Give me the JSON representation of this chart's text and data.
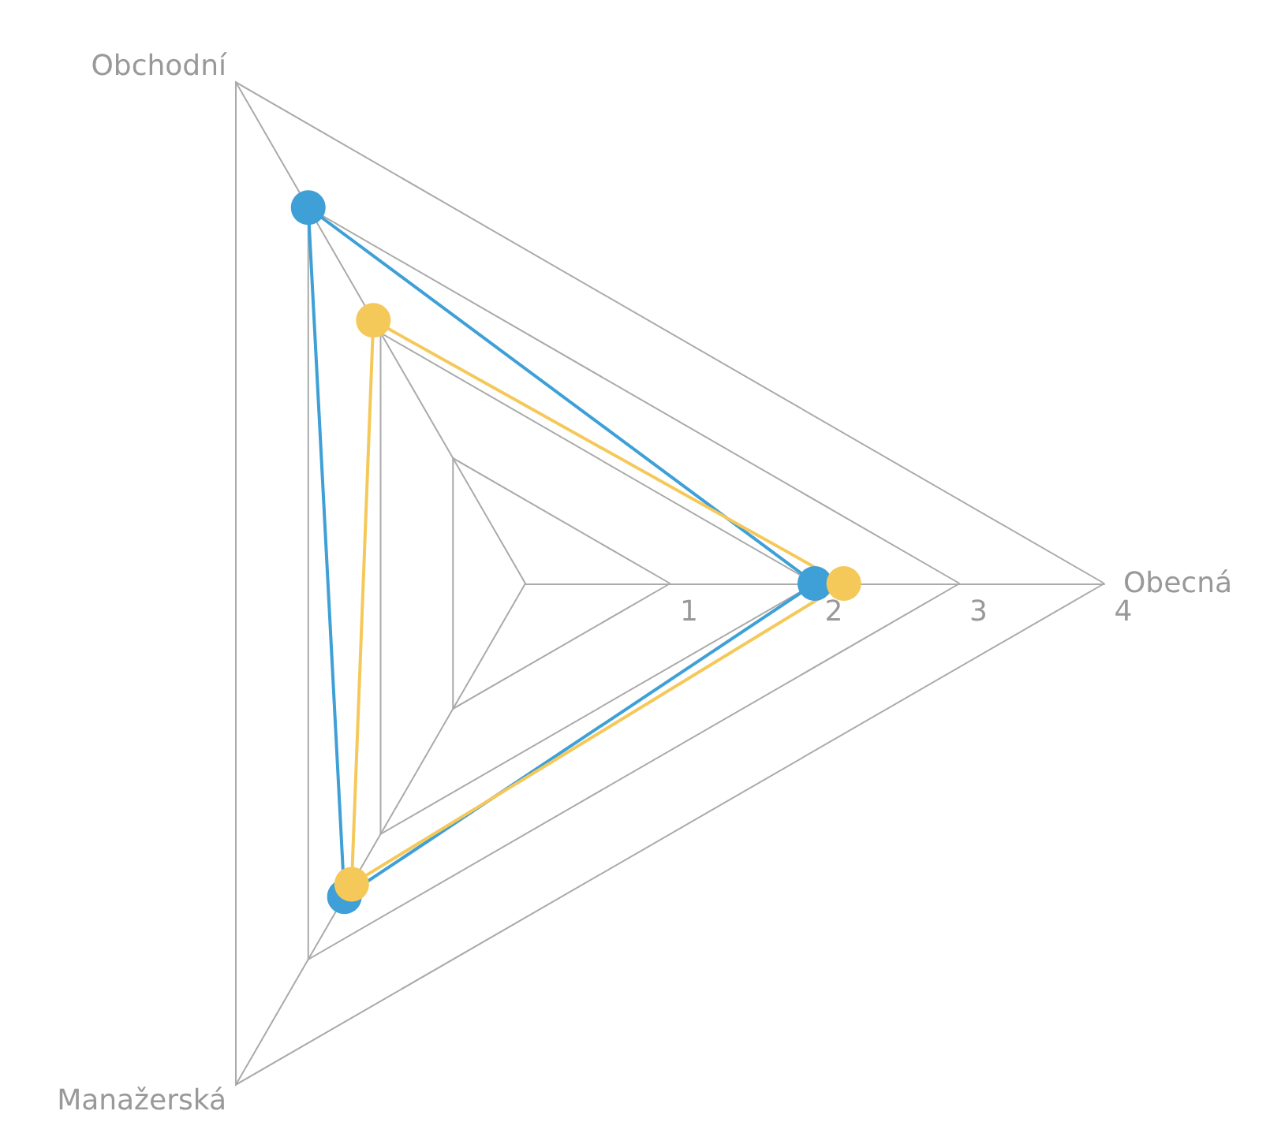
{
  "chart_data": {
    "type": "radar",
    "categories": [
      "Obecná",
      "Manažerská",
      "Obchodní"
    ],
    "series": [
      {
        "color": "#3ea0d6",
        "values": [
          2,
          2.5,
          3
        ]
      },
      {
        "color": "#f5c85a",
        "values": [
          2.2,
          2.4,
          2.1
        ]
      }
    ],
    "ylim": [
      0,
      4
    ],
    "yticks": [
      1,
      2,
      3,
      4
    ],
    "grid": true,
    "marker": "circle"
  }
}
